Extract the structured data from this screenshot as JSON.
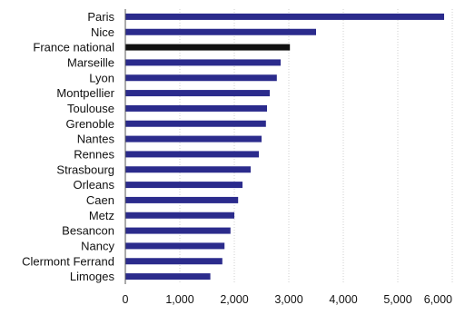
{
  "chart_data": {
    "type": "bar",
    "orientation": "horizontal",
    "title": "",
    "xlabel": "",
    "ylabel": "",
    "categories": [
      "Paris",
      "Nice",
      "France national",
      "Marseille",
      "Lyon",
      "Montpellier",
      "Toulouse",
      "Grenoble",
      "Nantes",
      "Rennes",
      "Strasbourg",
      "Orleans",
      "Caen",
      "Metz",
      "Besancon",
      "Nancy",
      "Clermont Ferrand",
      "Limoges"
    ],
    "values": [
      5850,
      3500,
      3020,
      2850,
      2780,
      2650,
      2600,
      2580,
      2500,
      2450,
      2300,
      2150,
      2070,
      2000,
      1930,
      1820,
      1780,
      1560
    ],
    "highlight_category": "France national",
    "xlim": [
      0,
      6000
    ],
    "xticks": [
      0,
      1000,
      2000,
      3000,
      4000,
      5000,
      6000
    ],
    "xtick_labels": [
      "0",
      "1,000",
      "2,000",
      "3,000",
      "4,000",
      "5,000",
      "6,000"
    ],
    "grid": true,
    "legend": "none",
    "colors": {
      "bar": "#2b2b8c",
      "highlight": "#111111"
    }
  }
}
